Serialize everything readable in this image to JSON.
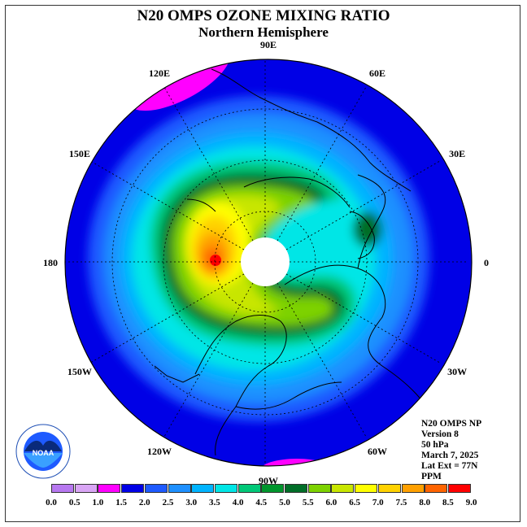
{
  "title": "N20 OMPS OZONE MIXING RATIO",
  "subtitle": "Northern Hemisphere",
  "longitude_labels": [
    {
      "text": "90E",
      "lon": 90
    },
    {
      "text": "60E",
      "lon": 60
    },
    {
      "text": "30E",
      "lon": 30
    },
    {
      "text": "0",
      "lon": 0
    },
    {
      "text": "30W",
      "lon": -30
    },
    {
      "text": "60W",
      "lon": -60
    },
    {
      "text": "90W",
      "lon": -90
    },
    {
      "text": "120W",
      "lon": -120
    },
    {
      "text": "150W",
      "lon": -150
    },
    {
      "text": "180",
      "lon": 180
    },
    {
      "text": "150E",
      "lon": 150
    },
    {
      "text": "120E",
      "lon": 120
    }
  ],
  "info": {
    "product": "N20 OMPS NP",
    "version": "Version 8",
    "level": "50 hPa",
    "date": "March 7, 2025",
    "lat_ext": "Lat Ext = 77N",
    "units": "PPM"
  },
  "legend": {
    "ticks": [
      "0.0",
      "0.5",
      "1.0",
      "1.5",
      "2.0",
      "2.5",
      "3.0",
      "3.5",
      "4.0",
      "4.5",
      "5.0",
      "5.5",
      "6.0",
      "6.5",
      "7.0",
      "7.5",
      "8.0",
      "8.5",
      "9.0"
    ],
    "colors": [
      "#b778f0",
      "#d9a5f5",
      "#ff00ff",
      "#0000e6",
      "#1e5aff",
      "#1e90ff",
      "#00b4ff",
      "#00e6e6",
      "#00c878",
      "#00962d",
      "#006e28",
      "#7dd200",
      "#c8e600",
      "#ffff00",
      "#ffd200",
      "#ffa000",
      "#ff6400",
      "#ff0000",
      "#8b4513"
    ]
  },
  "logo": {
    "text": "NOAA"
  }
}
